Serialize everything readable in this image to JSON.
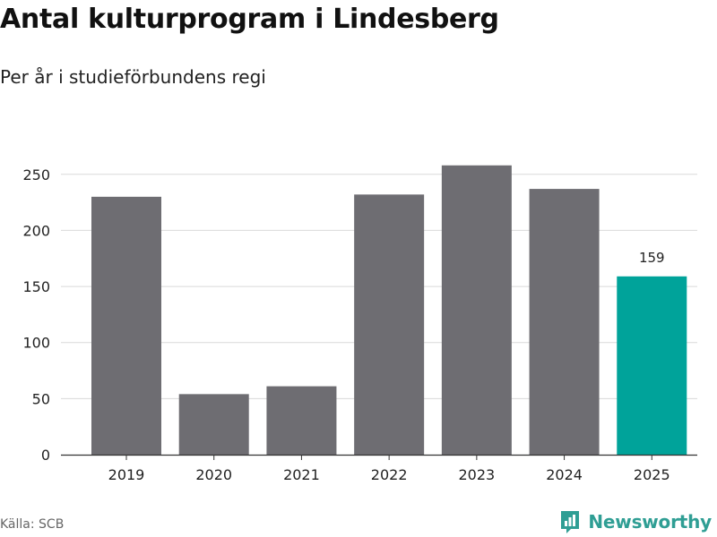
{
  "title": "Antal kulturprogram i Lindesberg",
  "subtitle": "Per år i studieförbundens regi",
  "source": "Källa: SCB",
  "brand": {
    "name": "Newsworthy",
    "icon": "newsworthy-logo-icon"
  },
  "colors": {
    "bar": "#6e6d72",
    "highlight": "#00a39a",
    "grid": "#d9d9d9",
    "axis": "#333333"
  },
  "chart_data": {
    "type": "bar",
    "title": "Antal kulturprogram i Lindesberg",
    "subtitle": "Per år i studieförbundens regi",
    "xlabel": "",
    "ylabel": "",
    "categories": [
      "2019",
      "2020",
      "2021",
      "2022",
      "2023",
      "2024",
      "2025"
    ],
    "values": [
      230,
      54,
      61,
      232,
      258,
      237,
      159
    ],
    "highlight_index": 6,
    "data_labels": [
      {
        "index": 6,
        "text": "159"
      }
    ],
    "yticks": [
      0,
      50,
      100,
      150,
      200,
      250
    ],
    "ylim": [
      0,
      265
    ],
    "grid": true
  }
}
